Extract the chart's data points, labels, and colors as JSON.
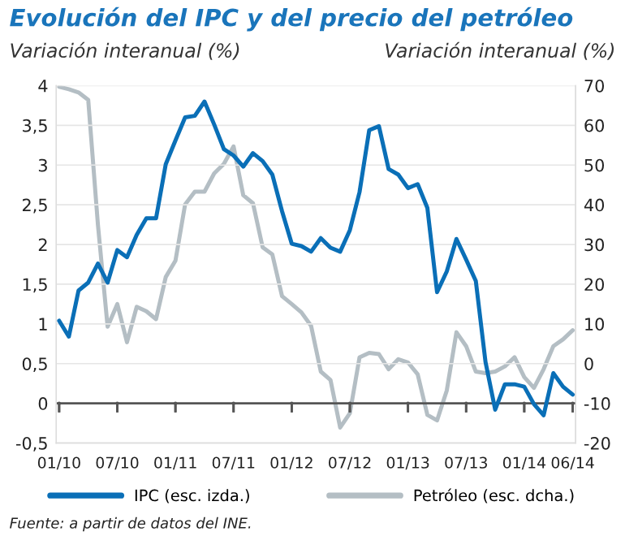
{
  "chart_data": {
    "type": "line",
    "title": "Evolución del IPC y del precio del petróleo",
    "ylabel": "Variación interanual (%)",
    "y2label": "Variación interanual (%)",
    "categories": [
      "01/10",
      null,
      null,
      null,
      null,
      null,
      "07/10",
      null,
      null,
      null,
      null,
      null,
      "01/11",
      null,
      null,
      null,
      null,
      null,
      "07/11",
      null,
      null,
      null,
      null,
      null,
      "01/12",
      null,
      null,
      null,
      null,
      null,
      "07/12",
      null,
      null,
      null,
      null,
      null,
      "01/13",
      null,
      null,
      null,
      null,
      null,
      "07/13",
      null,
      null,
      null,
      null,
      null,
      "01/14",
      null,
      null,
      null,
      null,
      "06/14"
    ],
    "series": [
      {
        "name": "IPC (esc. izda.)",
        "color": "#0a6fb7",
        "values": [
          1.04,
          0.84,
          1.42,
          1.52,
          1.76,
          1.52,
          1.93,
          1.84,
          2.12,
          2.33,
          2.33,
          3.01,
          3.31,
          3.6,
          3.62,
          3.8,
          3.51,
          3.2,
          3.12,
          2.98,
          3.15,
          3.05,
          2.88,
          2.42,
          2.01,
          1.98,
          1.91,
          2.08,
          1.96,
          1.91,
          2.18,
          2.66,
          3.44,
          3.49,
          2.95,
          2.88,
          2.71,
          2.76,
          2.46,
          1.4,
          1.66,
          2.07,
          1.81,
          1.54,
          0.52,
          -0.08,
          0.24,
          0.24,
          0.21,
          -0.01,
          -0.15,
          0.38,
          0.21,
          0.11
        ]
      },
      {
        "name": "Petróleo (esc. dcha.)",
        "color": "#b4bec4",
        "axis": "y2",
        "values": [
          69.7,
          69.1,
          68.3,
          66.4,
          35,
          9.3,
          15,
          5.4,
          14.3,
          13.2,
          11.2,
          21.8,
          25.9,
          40.1,
          43.3,
          43.3,
          47.9,
          50.3,
          54.7,
          42.4,
          40.4,
          29.3,
          27.5,
          17,
          15,
          12.9,
          9.5,
          -2,
          -4.1,
          -16.1,
          -12.5,
          1.6,
          2.7,
          2.4,
          -1.4,
          1.1,
          0.3,
          -2.7,
          -12.9,
          -14.3,
          -6.8,
          7.9,
          4.4,
          -2,
          -2.4,
          -2,
          -0.7,
          1.6,
          -3.4,
          -6.1,
          -1.4,
          4.4,
          6.1,
          8.4
        ]
      }
    ],
    "ylim": [
      -0.5,
      4
    ],
    "yticks": [
      {
        "value": -0.5,
        "label": "-0,5"
      },
      0,
      {
        "value": 0.5,
        "label": "0,5"
      },
      1,
      {
        "value": 1.5,
        "label": "1,5"
      },
      2,
      {
        "value": 2.5,
        "label": "2,5"
      },
      3,
      {
        "value": 3.5,
        "label": "3,5"
      },
      4
    ],
    "y2lim": [
      -20,
      70
    ],
    "y2ticks": [
      -20,
      -10,
      0,
      10,
      20,
      30,
      40,
      50,
      60,
      70
    ],
    "ref_lines": [
      {
        "axis": "y",
        "value": 0,
        "color": "#555555"
      }
    ],
    "grid": "y",
    "legend": "bottom",
    "line_style": "solid",
    "marker": "none",
    "annotations": [
      "Fuente: a partir de datos del INE."
    ]
  }
}
